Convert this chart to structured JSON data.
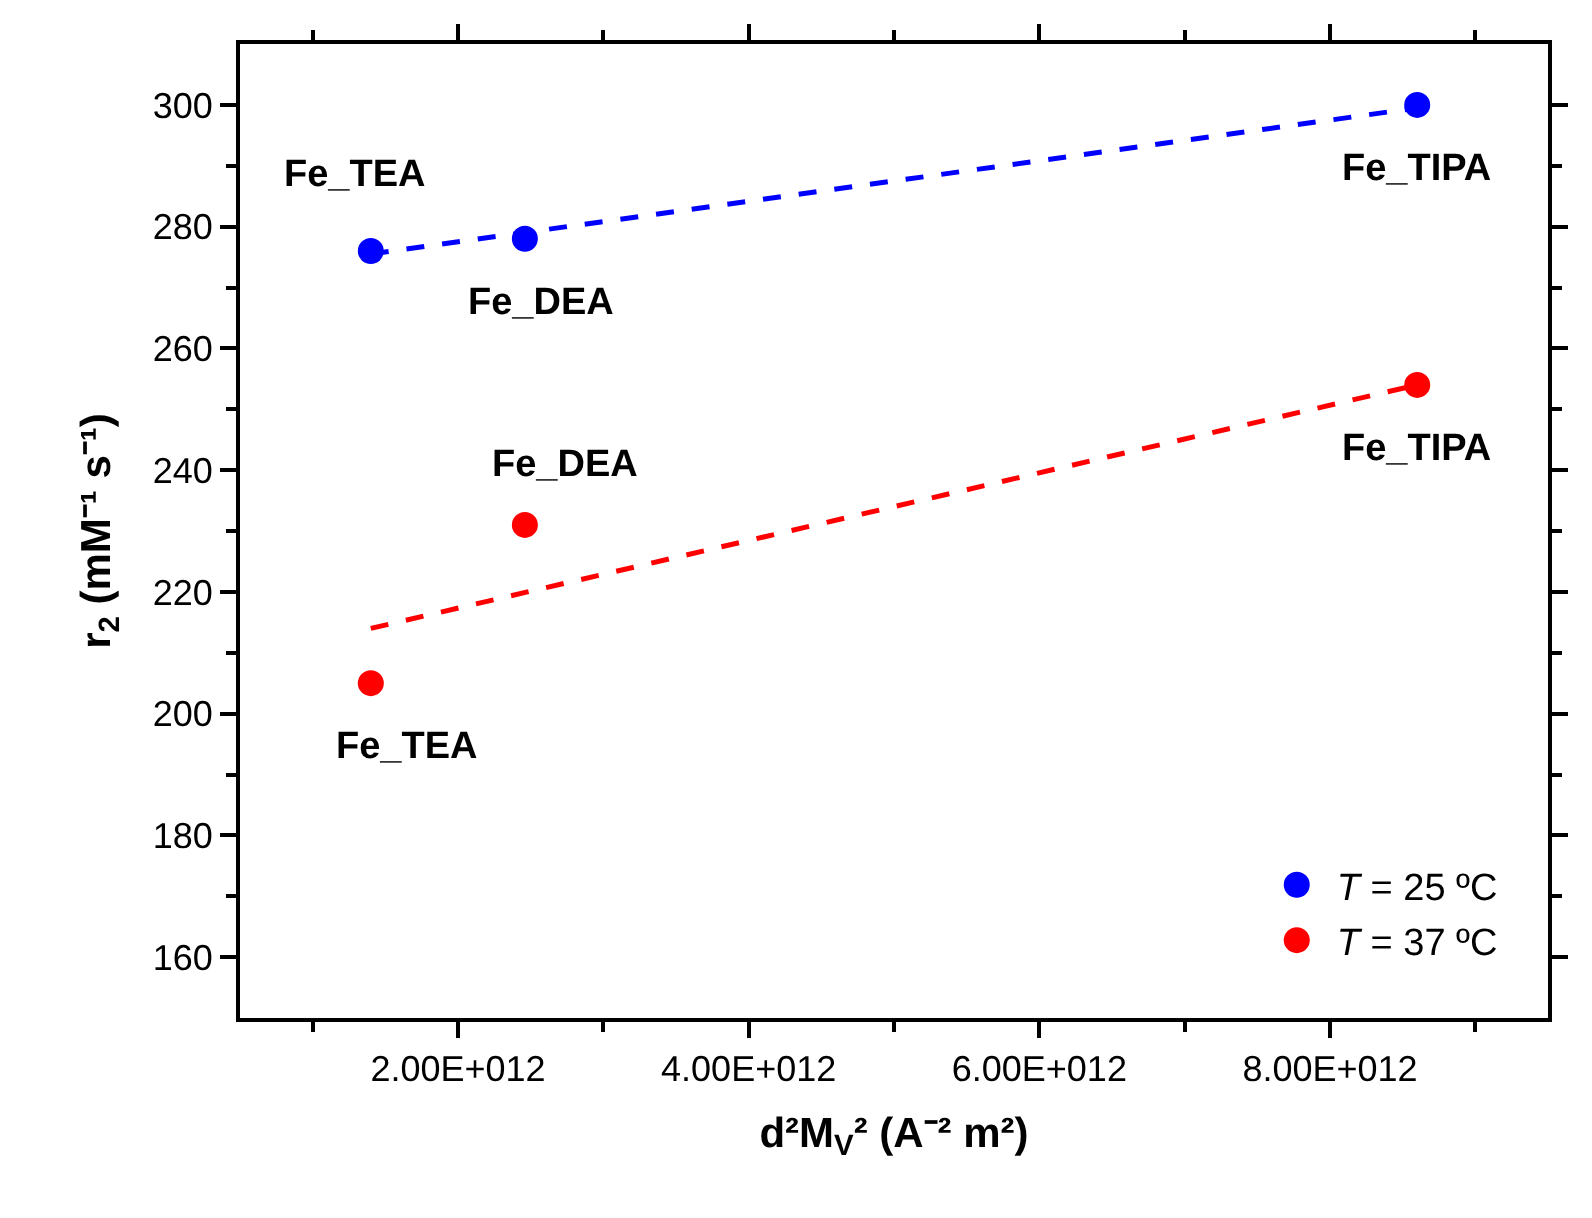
{
  "chart_data": {
    "type": "scatter",
    "xlabel": "d²M$_{V}$² (A⁻² m²)",
    "ylabel": "r$_{2}$ (mM⁻¹ s⁻¹)",
    "xlim": [
      500000000000.0,
      9500000000000.0
    ],
    "xticks": [
      {
        "value": 1000000000000.0,
        "label": null
      },
      {
        "value": 2000000000000.0,
        "label": "2.00E+012"
      },
      {
        "value": 3000000000000.0,
        "label": null
      },
      {
        "value": 4000000000000.0,
        "label": "4.00E+012"
      },
      {
        "value": 5000000000000.0,
        "label": null
      },
      {
        "value": 6000000000000.0,
        "label": "6.00E+012"
      },
      {
        "value": 7000000000000.0,
        "label": null
      },
      {
        "value": 8000000000000.0,
        "label": "8.00E+012"
      },
      {
        "value": 9000000000000.0,
        "label": null
      }
    ],
    "ylim": [
      150,
      310
    ],
    "yticks": [
      160,
      {
        "value": 170,
        "label": null
      },
      180,
      {
        "value": 190,
        "label": null
      },
      200,
      {
        "value": 210,
        "label": null
      },
      220,
      {
        "value": 230,
        "label": null
      },
      240,
      {
        "value": 250,
        "label": null
      },
      260,
      {
        "value": 270,
        "label": null
      },
      280,
      {
        "value": 290,
        "label": null
      },
      300
    ],
    "legend": "bottom right",
    "marker": "circle",
    "series": [
      {
        "name": "T = 25 ºC",
        "color": "#0000ff",
        "x": [
          1400000000000.0,
          2460000000000.0,
          8600000000000.0
        ],
        "values": [
          276,
          278,
          300
        ]
      },
      {
        "name": "T = 37 ºC",
        "color": "#ff0000",
        "x": [
          1400000000000.0,
          2460000000000.0,
          8600000000000.0
        ],
        "values": [
          205,
          231,
          254
        ]
      },
      {
        "type": "line",
        "color": "#0000ff",
        "line_style": "dashed",
        "marker": "none",
        "x": [
          1400000000000.0,
          8600000000000.0
        ],
        "values": [
          275.5,
          299.5
        ]
      },
      {
        "type": "line",
        "color": "#ff0000",
        "line_style": "dashed",
        "marker": "none",
        "x": [
          1400000000000.0,
          8600000000000.0
        ],
        "values": [
          214,
          254
        ]
      }
    ],
    "annotations": [
      {
        "text": "Fe_TEA",
        "x": 1400000000000.0,
        "y": 276
      },
      {
        "text": "Fe_DEA",
        "x": 2460000000000.0,
        "y": 278
      },
      {
        "text": "Fe_TIPA",
        "x": 8600000000000.0,
        "y": 300
      },
      {
        "text": "Fe_DEA",
        "x": 2460000000000.0,
        "y": 231
      },
      {
        "text": "Fe_TEA",
        "x": 1400000000000.0,
        "y": 205
      },
      {
        "text": "Fe_TIPA",
        "x": 8600000000000.0,
        "y": 254
      }
    ]
  }
}
